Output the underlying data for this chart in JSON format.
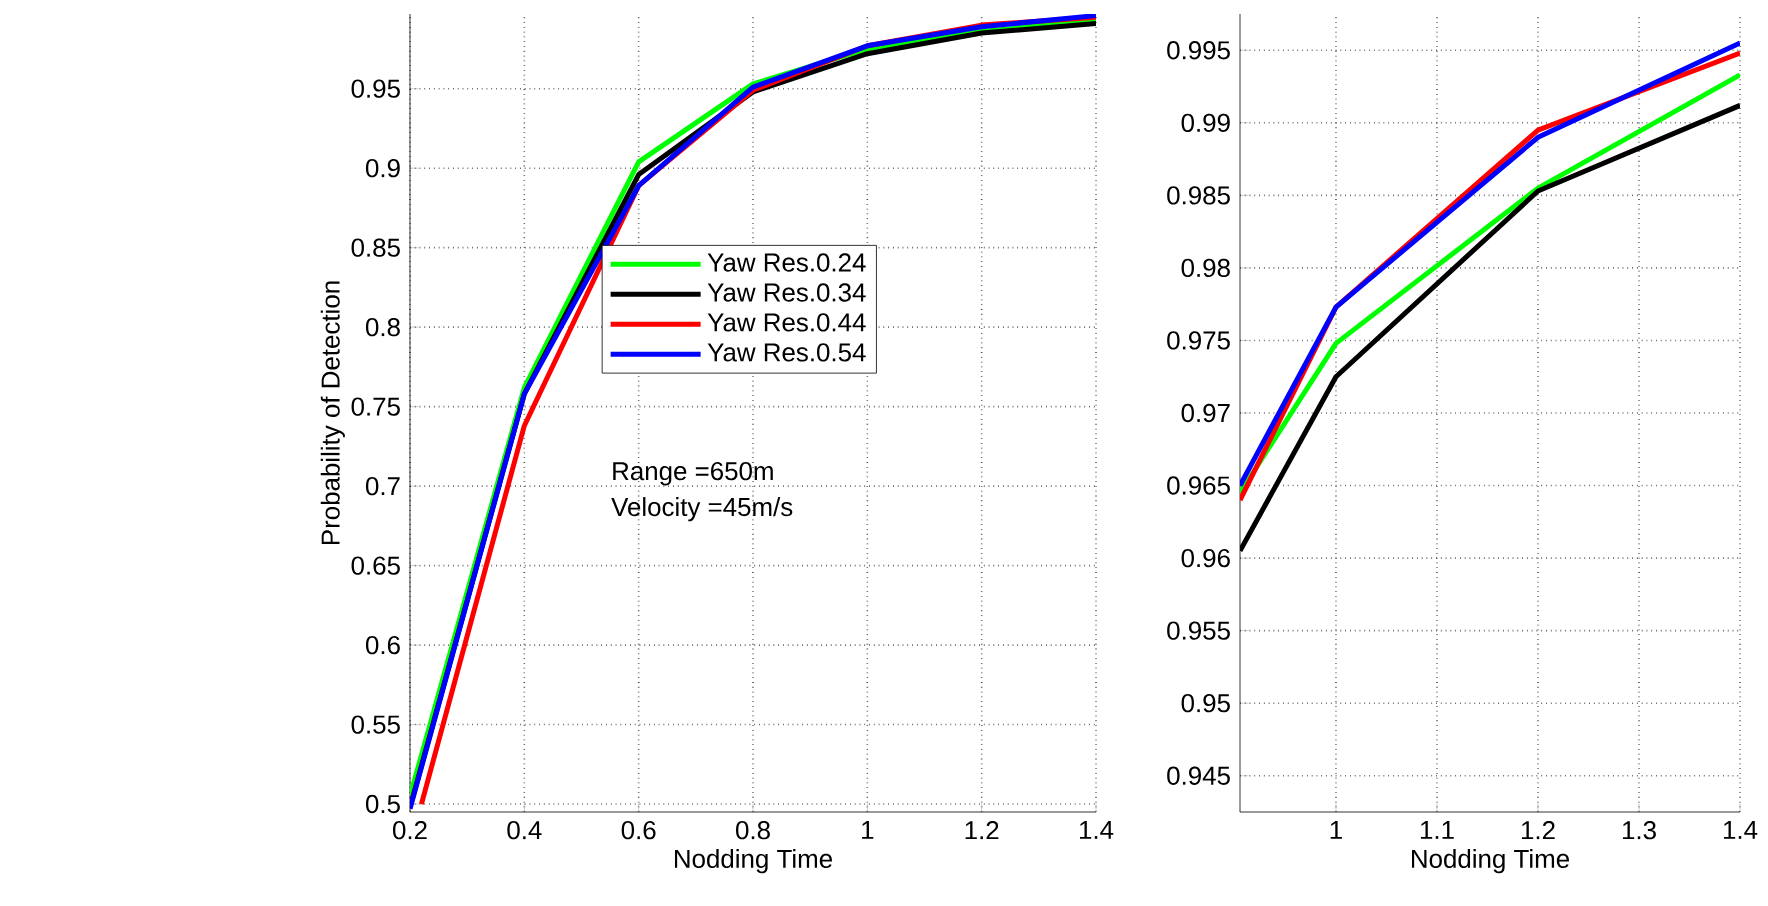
{
  "chart_data": [
    {
      "type": "line",
      "xlabel": "Nodding Time",
      "ylabel": "Probability of Detection",
      "xlim": [
        0.2,
        1.4
      ],
      "ylim": [
        0.495,
        0.997
      ],
      "xticks": [
        0.2,
        0.4,
        0.6,
        0.8,
        1,
        1.2,
        1.4
      ],
      "yticks": [
        0.5,
        0.55,
        0.6,
        0.65,
        0.7,
        0.75,
        0.8,
        0.85,
        0.9,
        0.95
      ],
      "grid": true,
      "legend": "center",
      "marker": "none",
      "annotations": [
        "Range =650m",
        "Velocity =45m/s"
      ],
      "series": [
        {
          "name": "Yaw Res.0.24",
          "color": "#00ff00",
          "x": [
            0.2,
            0.4,
            0.6,
            0.8,
            1,
            1.2,
            1.4
          ],
          "values": [
            0.505,
            0.762,
            0.904,
            0.953,
            0.975,
            0.986,
            0.993
          ]
        },
        {
          "name": "Yaw Res.0.34",
          "color": "#000000",
          "x": [
            0.2,
            0.4,
            0.6,
            0.8,
            1,
            1.2,
            1.4
          ],
          "values": [
            0.498,
            0.758,
            0.896,
            0.948,
            0.972,
            0.985,
            0.991
          ]
        },
        {
          "name": "Yaw Res.0.44",
          "color": "#ff0000",
          "x": [
            0.22,
            0.4,
            0.6,
            0.8,
            1,
            1.2,
            1.4
          ],
          "values": [
            0.5,
            0.738,
            0.889,
            0.949,
            0.977,
            0.99,
            0.995
          ]
        },
        {
          "name": "Yaw Res.0.54",
          "color": "#0000ff",
          "x": [
            0.2,
            0.4,
            0.6,
            0.8,
            1,
            1.2,
            1.4
          ],
          "values": [
            0.497,
            0.758,
            0.889,
            0.951,
            0.977,
            0.989,
            0.996
          ]
        }
      ]
    },
    {
      "type": "line",
      "xlabel": "Nodding Time",
      "xlim": [
        0.905,
        1.4
      ],
      "ylim": [
        0.9425,
        0.9975
      ],
      "xticks": [
        1,
        1.1,
        1.2,
        1.3,
        1.4
      ],
      "yticks": [
        0.945,
        0.95,
        0.955,
        0.96,
        0.965,
        0.97,
        0.975,
        0.98,
        0.985,
        0.99,
        0.995
      ],
      "grid": true,
      "marker": "none",
      "series": [
        {
          "color": "#00ff00",
          "x": [
            0.905,
            1,
            1.2,
            1.4
          ],
          "values": [
            0.9645,
            0.9748,
            0.9855,
            0.9933
          ]
        },
        {
          "color": "#000000",
          "x": [
            0.905,
            1,
            1.2,
            1.4
          ],
          "values": [
            0.9605,
            0.9725,
            0.9853,
            0.9912
          ]
        },
        {
          "color": "#ff0000",
          "x": [
            0.905,
            1,
            1.2,
            1.4
          ],
          "values": [
            0.964,
            0.9773,
            0.9895,
            0.9948
          ]
        },
        {
          "color": "#0000ff",
          "x": [
            0.905,
            1,
            1.2,
            1.4
          ],
          "values": [
            0.965,
            0.9773,
            0.989,
            0.9955
          ]
        }
      ]
    }
  ]
}
